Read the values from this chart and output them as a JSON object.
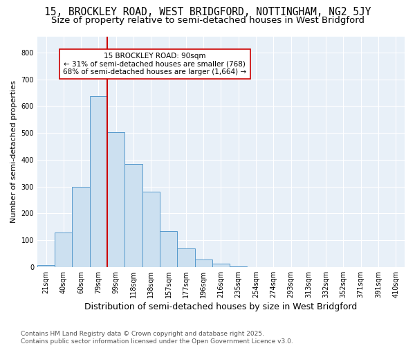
{
  "title": "15, BROCKLEY ROAD, WEST BRIDGFORD, NOTTINGHAM, NG2 5JY",
  "subtitle": "Size of property relative to semi-detached houses in West Bridgford",
  "xlabel": "Distribution of semi-detached houses by size in West Bridgford",
  "ylabel": "Number of semi-detached properties",
  "footnote": "Contains HM Land Registry data © Crown copyright and database right 2025.\nContains public sector information licensed under the Open Government Licence v3.0.",
  "bar_labels": [
    "21sqm",
    "40sqm",
    "60sqm",
    "79sqm",
    "99sqm",
    "118sqm",
    "138sqm",
    "157sqm",
    "177sqm",
    "196sqm",
    "216sqm",
    "235sqm",
    "254sqm",
    "274sqm",
    "293sqm",
    "313sqm",
    "332sqm",
    "352sqm",
    "371sqm",
    "391sqm",
    "410sqm"
  ],
  "bar_values": [
    8,
    128,
    300,
    638,
    503,
    385,
    280,
    133,
    68,
    28,
    13,
    3,
    0,
    0,
    0,
    0,
    0,
    0,
    0,
    0,
    0
  ],
  "bar_color": "#cce0f0",
  "bar_edge_color": "#5599cc",
  "vline_color": "#cc0000",
  "vline_x": 3.5,
  "annotation_text": "15 BROCKLEY ROAD: 90sqm\n← 31% of semi-detached houses are smaller (768)\n68% of semi-detached houses are larger (1,664) →",
  "annotation_box_facecolor": "#ffffff",
  "annotation_box_edgecolor": "#cc0000",
  "ylim": [
    0,
    860
  ],
  "yticks": [
    0,
    100,
    200,
    300,
    400,
    500,
    600,
    700,
    800
  ],
  "fig_bg_color": "#ffffff",
  "plot_bg_color": "#e8f0f8",
  "grid_color": "#ffffff",
  "title_fontsize": 10.5,
  "subtitle_fontsize": 9.5,
  "xlabel_fontsize": 9,
  "ylabel_fontsize": 8,
  "tick_fontsize": 7,
  "annot_fontsize": 7.5,
  "footnote_fontsize": 6.5
}
